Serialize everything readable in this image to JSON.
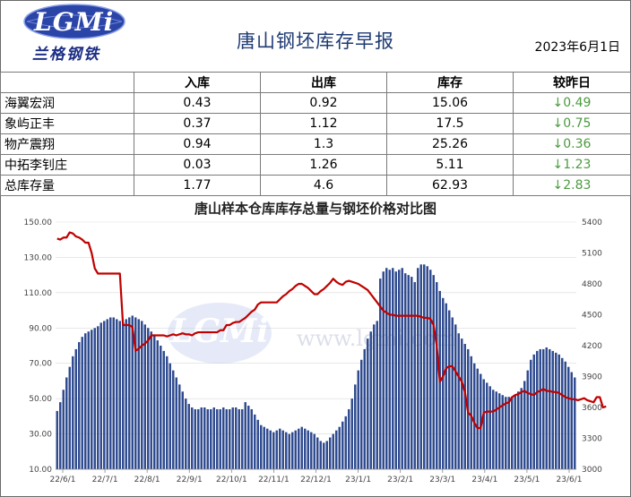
{
  "header": {
    "logo_text": "LGMi",
    "logo_cn": "兰格钢铁",
    "title": "唐山钢坯库存早报",
    "date": "2023年6月1日"
  },
  "table": {
    "columns": [
      "",
      "入库",
      "出库",
      "库存",
      "较昨日"
    ],
    "rows": [
      {
        "name": "海翼宏润",
        "in": "0.43",
        "out": "0.92",
        "stock": "15.06",
        "change": "↓0.49"
      },
      {
        "name": "象屿正丰",
        "in": "0.37",
        "out": "1.12",
        "stock": "17.5",
        "change": "↓0.75"
      },
      {
        "name": "物产震翔",
        "in": "0.94",
        "out": "1.3",
        "stock": "25.26",
        "change": "↓0.36"
      },
      {
        "name": "中拓李钊庄",
        "in": "0.03",
        "out": "1.26",
        "stock": "5.11",
        "change": "↓1.23"
      },
      {
        "name": "总库存量",
        "in": "1.77",
        "out": "4.6",
        "stock": "62.93",
        "change": "↓2.83"
      }
    ]
  },
  "chart_data": {
    "type": "bar",
    "title": "唐山样本仓库库存总量与钢坯价格对比图",
    "watermark_text": "LGMi",
    "watermark_url": "www.lgmi.com",
    "x_tick_labels": [
      "22/6/1",
      "22/7/1",
      "22/8/1",
      "22/9/1",
      "22/10/1",
      "22/11/1",
      "22/12/1",
      "23/1/1",
      "23/2/1",
      "23/3/1",
      "23/4/1",
      "23/5/1",
      "23/6/1"
    ],
    "y_left": {
      "min": 10,
      "max": 150,
      "ticks": [
        "10.00",
        "30.00",
        "50.00",
        "70.00",
        "90.00",
        "110.00",
        "130.00",
        "150.00"
      ]
    },
    "y_right": {
      "min": 3000,
      "max": 5400,
      "ticks": [
        "3000",
        "3300",
        "3600",
        "3900",
        "4200",
        "4500",
        "4800",
        "5100",
        "5400"
      ]
    },
    "colors": {
      "bar": "#2e4a8f",
      "line": "#c00000",
      "grid": "#d9d9d9"
    },
    "series": [
      {
        "kind": "bar",
        "axis": "left",
        "values": [
          43,
          48,
          55,
          62,
          68,
          74,
          78,
          82,
          85,
          87,
          88,
          89,
          90,
          91,
          93,
          94,
          95,
          96,
          96,
          95,
          94,
          93,
          95,
          96,
          97,
          96,
          95,
          94,
          92,
          90,
          88,
          86,
          83,
          80,
          77,
          74,
          70,
          66,
          62,
          58,
          54,
          50,
          47,
          45,
          44,
          44,
          45,
          45,
          44,
          44,
          45,
          44,
          44,
          45,
          44,
          44,
          45,
          45,
          44,
          44,
          48,
          46,
          44,
          41,
          38,
          35,
          34,
          33,
          32,
          31,
          32,
          33,
          32,
          31,
          30,
          31,
          32,
          33,
          34,
          33,
          32,
          31,
          30,
          28,
          26,
          25,
          26,
          28,
          30,
          32,
          34,
          37,
          40,
          44,
          50,
          58,
          66,
          72,
          78,
          84,
          88,
          92,
          94,
          118,
          122,
          124,
          123,
          124,
          122,
          123,
          124,
          121,
          120,
          119,
          116,
          124,
          126,
          126,
          125,
          123,
          120,
          116,
          111,
          107,
          104,
          100,
          96,
          92,
          87,
          84,
          81,
          78,
          74,
          70,
          67,
          64,
          61,
          59,
          57,
          55,
          54,
          53,
          52,
          51,
          51,
          51,
          52,
          54,
          56,
          60,
          66,
          72,
          75,
          77,
          78,
          78,
          79,
          78,
          77,
          76,
          75,
          73,
          71,
          68,
          65,
          62
        ]
      },
      {
        "kind": "line",
        "axis": "right",
        "values": [
          5240,
          5230,
          5250,
          5250,
          5300,
          5290,
          5260,
          5250,
          5230,
          5200,
          5200,
          5100,
          4950,
          4900,
          4900,
          4900,
          4900,
          4900,
          4900,
          4900,
          4900,
          4400,
          4400,
          4400,
          4380,
          4150,
          4170,
          4200,
          4220,
          4250,
          4300,
          4300,
          4300,
          4300,
          4300,
          4290,
          4300,
          4310,
          4300,
          4310,
          4320,
          4310,
          4310,
          4300,
          4320,
          4330,
          4330,
          4330,
          4330,
          4330,
          4330,
          4330,
          4350,
          4350,
          4400,
          4400,
          4420,
          4430,
          4430,
          4450,
          4470,
          4500,
          4530,
          4550,
          4600,
          4620,
          4620,
          4620,
          4620,
          4620,
          4620,
          4650,
          4680,
          4700,
          4730,
          4750,
          4780,
          4800,
          4800,
          4780,
          4760,
          4730,
          4700,
          4700,
          4730,
          4750,
          4780,
          4810,
          4850,
          4820,
          4800,
          4790,
          4820,
          4830,
          4820,
          4810,
          4800,
          4780,
          4760,
          4740,
          4700,
          4660,
          4620,
          4580,
          4540,
          4520,
          4500,
          4500,
          4490,
          4490,
          4490,
          4490,
          4490,
          4490,
          4490,
          4490,
          4480,
          4470,
          4470,
          4460,
          4400,
          4200,
          3850,
          3900,
          3980,
          4000,
          4000,
          3950,
          3900,
          3850,
          3750,
          3550,
          3520,
          3450,
          3400,
          3400,
          3550,
          3560,
          3560,
          3560,
          3580,
          3600,
          3620,
          3640,
          3650,
          3700,
          3720,
          3730,
          3750,
          3760,
          3740,
          3730,
          3720,
          3750,
          3760,
          3780,
          3760,
          3760,
          3750,
          3750,
          3740,
          3720,
          3700,
          3690,
          3680,
          3680,
          3670,
          3680,
          3690,
          3670,
          3660,
          3650,
          3700,
          3700,
          3600,
          3610
        ]
      }
    ]
  }
}
